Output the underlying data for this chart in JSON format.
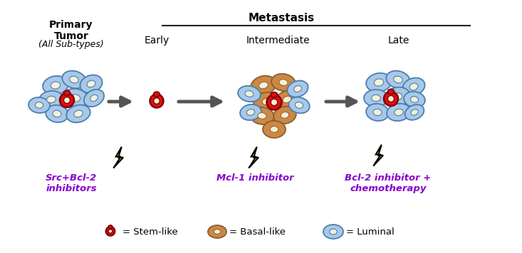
{
  "title_metastasis": "Metastasis",
  "subtitle_early": "Early",
  "subtitle_intermediate": "Intermediate",
  "subtitle_late": "Late",
  "label_src": "Src+Bcl-2\ninhibitors",
  "label_mcl": "Mcl-1 inhibitor",
  "label_bcl": "Bcl-2 inhibitor +\nchemotherapy",
  "legend_stem": "= Stem-like",
  "legend_basal": "= Basal-like",
  "legend_luminal": "= Luminal",
  "color_luminal_fill": "#a8c8e8",
  "color_luminal_edge": "#4a7fb0",
  "color_basal_fill": "#cc8844",
  "color_basal_edge": "#8b5e2e",
  "color_stem_fill": "#dd1111",
  "color_stem_edge": "#880000",
  "color_nucleus": "#f5f0d8",
  "color_nucleus_edge": "#ccb888",
  "color_purple": "#8800cc",
  "color_arrow": "#555555",
  "color_lightning_fill": "#ffee00",
  "color_lightning_edge": "#000000",
  "bg_color": "#ffffff",
  "metastasis_line_color": "#222222"
}
